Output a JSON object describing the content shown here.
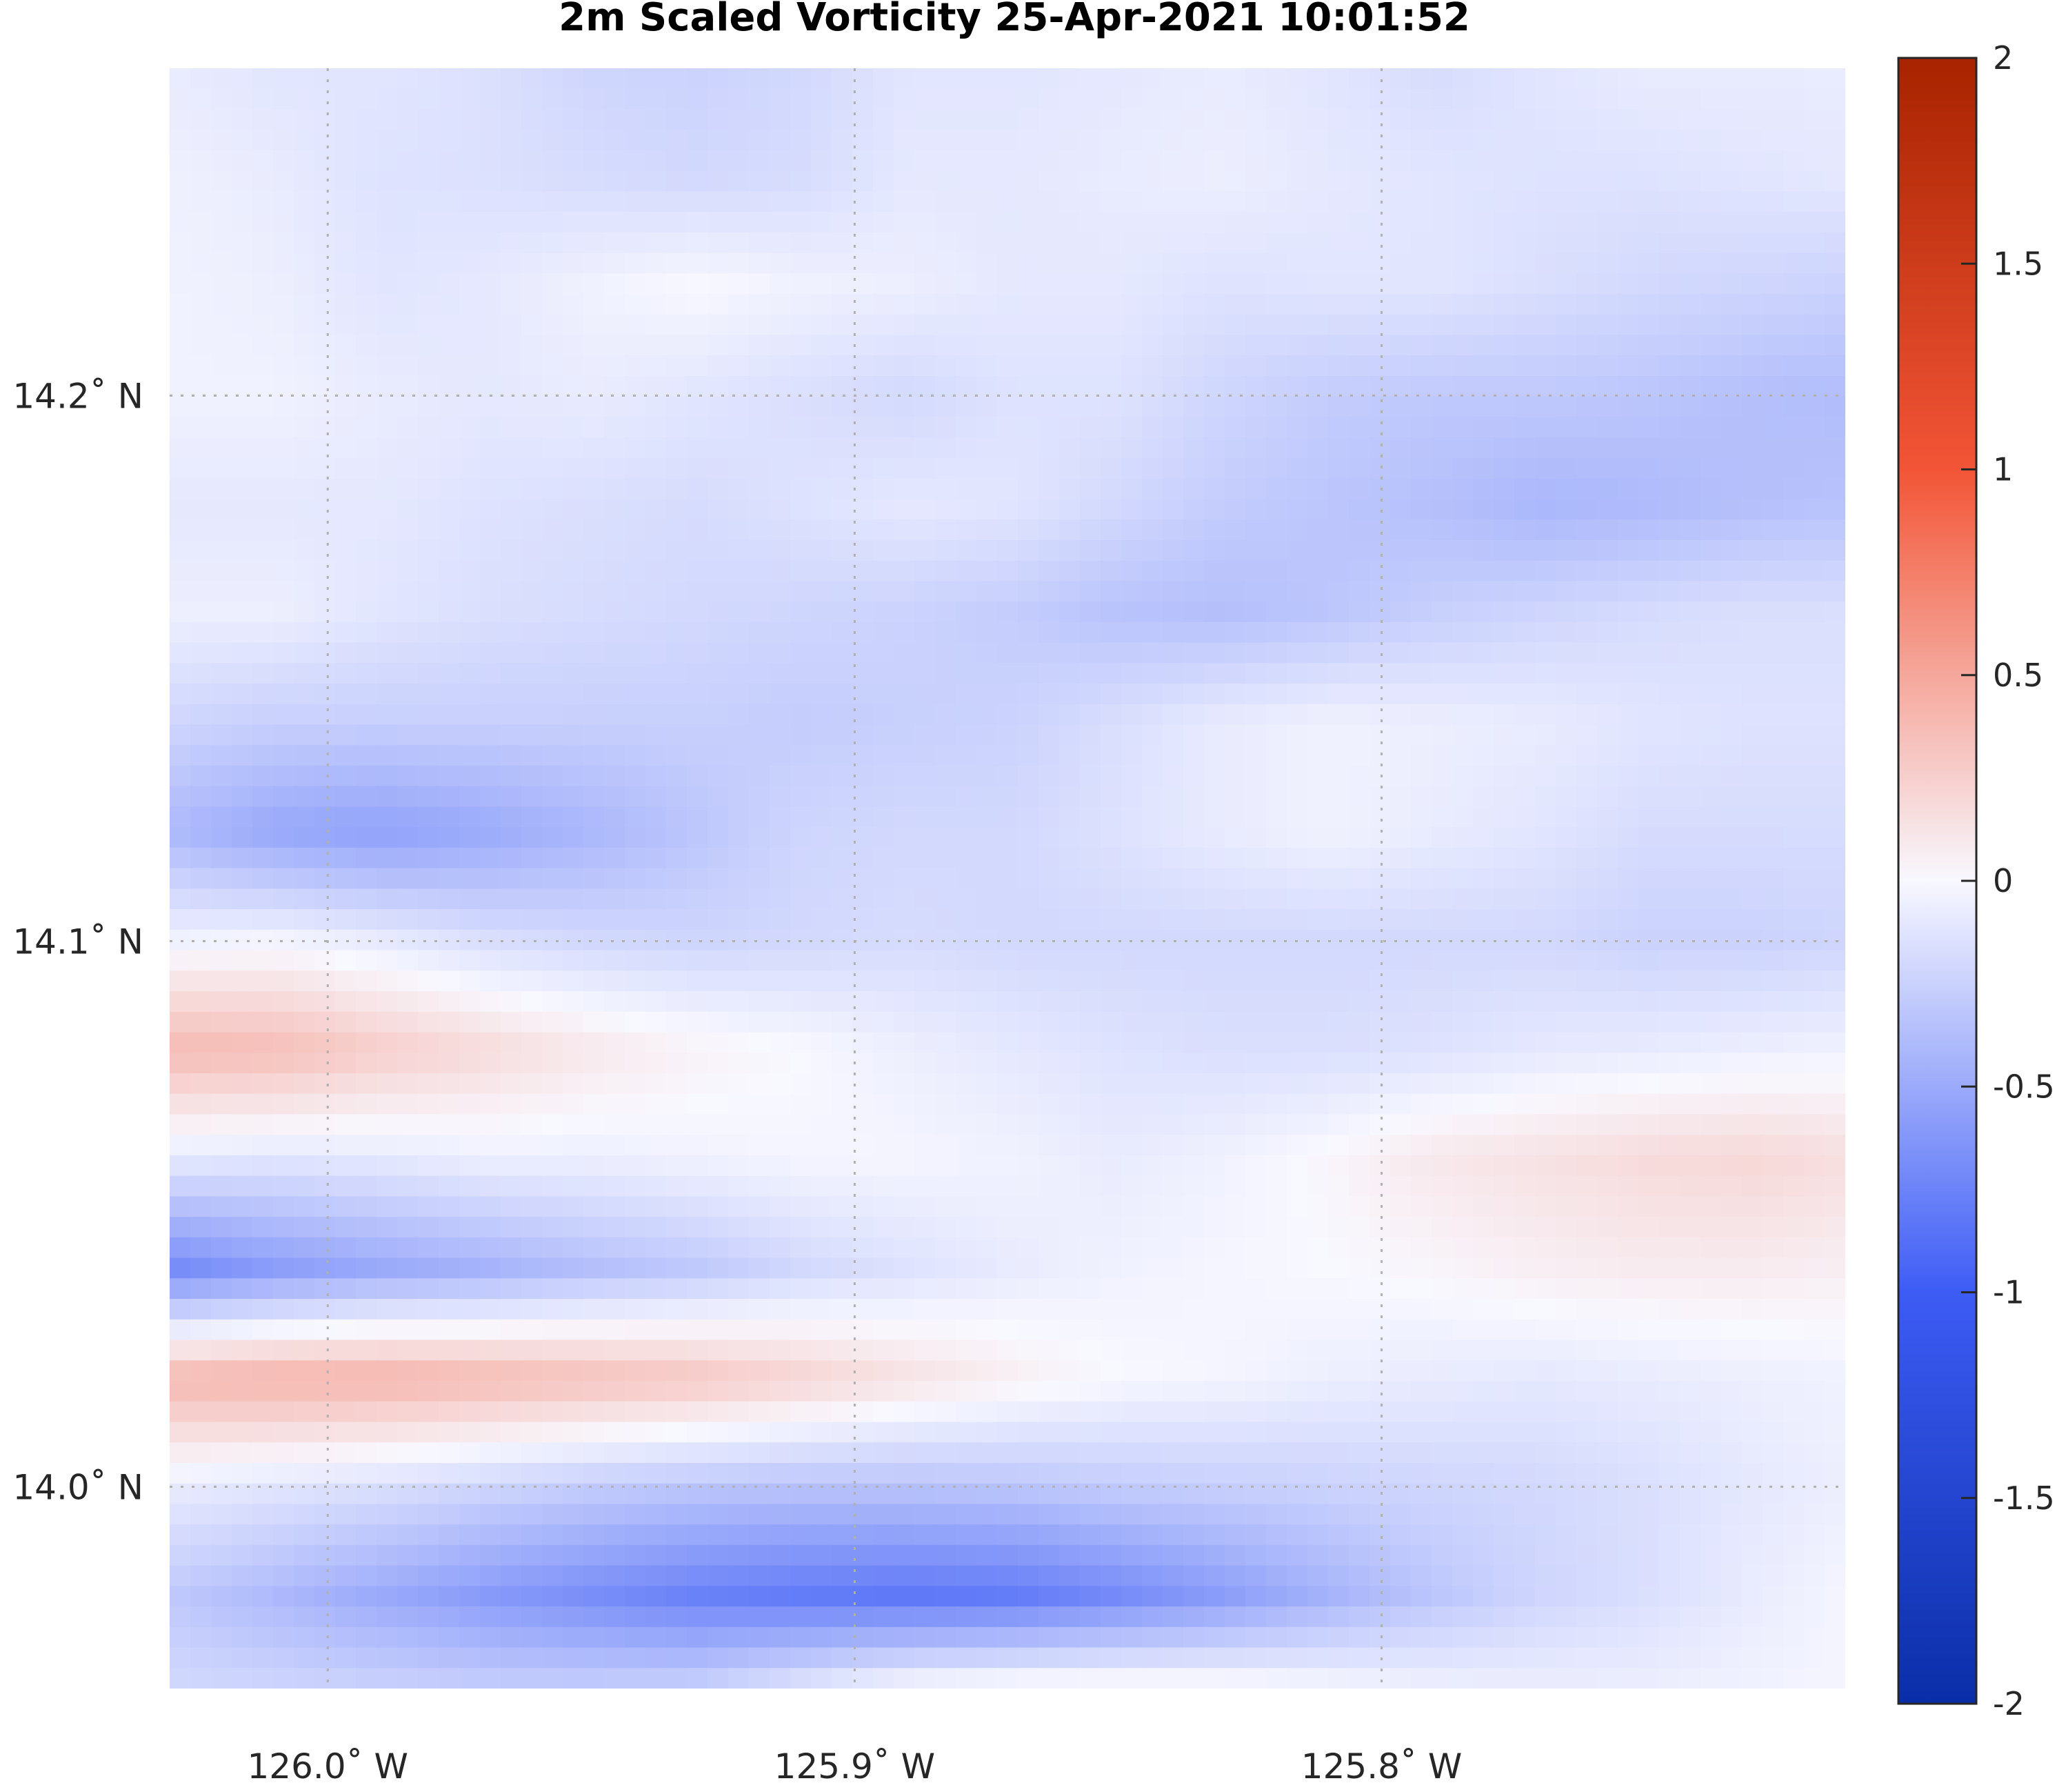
{
  "chart_data": {
    "type": "heatmap",
    "title": "2m Scaled Vorticity  25-Apr-2021 10:01:52",
    "xlabel": "",
    "ylabel": "",
    "x_ticks": [
      {
        "value": -126.0,
        "label": "126.0˚ W"
      },
      {
        "value": -125.9,
        "label": "125.9˚ W"
      },
      {
        "value": -125.8,
        "label": "125.8˚ W"
      }
    ],
    "y_ticks": [
      {
        "value": 14.2,
        "label": "14.2˚ N"
      },
      {
        "value": 14.1,
        "label": "14.1˚ N"
      },
      {
        "value": 14.0,
        "label": "14.0˚ N"
      }
    ],
    "xlim": [
      -126.03,
      -125.712
    ],
    "ylim": [
      13.963,
      14.26
    ],
    "grid": true,
    "colorbar": {
      "position": "right",
      "range": [
        -2,
        2
      ],
      "ticks": [
        {
          "value": 2,
          "label": "2"
        },
        {
          "value": 1.5,
          "label": "1.5"
        },
        {
          "value": 1,
          "label": "1"
        },
        {
          "value": 0.5,
          "label": "0.5"
        },
        {
          "value": 0,
          "label": "0"
        },
        {
          "value": -0.5,
          "label": "-0.5"
        },
        {
          "value": -1,
          "label": "-1"
        },
        {
          "value": -1.5,
          "label": "-1.5"
        },
        {
          "value": -2,
          "label": "-2"
        }
      ],
      "colors": {
        "low": "#0a2ea8",
        "mid_low": "#3d5cf5",
        "zero": "#f8f8ff",
        "mid_high": "#f25536",
        "high": "#a82300"
      }
    },
    "grid_x": [
      -126.03,
      -126.01,
      -125.99,
      -125.97,
      -125.95,
      -125.93,
      -125.91,
      -125.89,
      -125.87,
      -125.85,
      -125.83,
      -125.81,
      -125.79,
      -125.77,
      -125.75,
      -125.73,
      -125.712
    ],
    "grid_y": [
      14.26,
      14.24,
      14.22,
      14.2,
      14.18,
      14.16,
      14.14,
      14.12,
      14.1,
      14.08,
      14.06,
      14.04,
      14.02,
      14.0,
      13.98,
      13.963
    ],
    "values": [
      [
        -0.08,
        -0.12,
        -0.12,
        -0.15,
        -0.22,
        -0.24,
        -0.2,
        -0.12,
        -0.12,
        -0.1,
        -0.08,
        -0.12,
        -0.18,
        -0.12,
        -0.08,
        -0.08,
        -0.08
      ],
      [
        -0.05,
        -0.08,
        -0.14,
        -0.15,
        -0.18,
        -0.2,
        -0.18,
        -0.1,
        -0.1,
        -0.08,
        -0.06,
        -0.1,
        -0.12,
        -0.14,
        -0.14,
        -0.12,
        -0.1
      ],
      [
        -0.04,
        -0.06,
        -0.12,
        -0.1,
        -0.04,
        0.0,
        -0.04,
        -0.06,
        -0.1,
        -0.1,
        -0.14,
        -0.12,
        -0.12,
        -0.16,
        -0.2,
        -0.22,
        -0.24
      ],
      [
        -0.04,
        -0.04,
        -0.08,
        -0.1,
        -0.08,
        -0.12,
        -0.16,
        -0.2,
        -0.14,
        -0.14,
        -0.22,
        -0.28,
        -0.3,
        -0.3,
        -0.32,
        -0.36,
        -0.38
      ],
      [
        -0.1,
        -0.1,
        -0.1,
        -0.14,
        -0.16,
        -0.18,
        -0.14,
        -0.1,
        -0.12,
        -0.2,
        -0.28,
        -0.32,
        -0.36,
        -0.42,
        -0.4,
        -0.36,
        -0.34
      ],
      [
        -0.06,
        -0.06,
        -0.12,
        -0.16,
        -0.18,
        -0.2,
        -0.22,
        -0.24,
        -0.28,
        -0.34,
        -0.36,
        -0.32,
        -0.26,
        -0.22,
        -0.18,
        -0.16,
        -0.16
      ],
      [
        -0.22,
        -0.26,
        -0.26,
        -0.26,
        -0.26,
        -0.26,
        -0.28,
        -0.26,
        -0.24,
        -0.16,
        -0.08,
        -0.04,
        -0.06,
        -0.08,
        -0.12,
        -0.14,
        -0.14
      ],
      [
        -0.4,
        -0.52,
        -0.56,
        -0.5,
        -0.42,
        -0.32,
        -0.22,
        -0.2,
        -0.2,
        -0.14,
        -0.08,
        -0.04,
        -0.08,
        -0.12,
        -0.18,
        -0.18,
        -0.18
      ],
      [
        -0.04,
        -0.02,
        -0.08,
        -0.16,
        -0.2,
        -0.22,
        -0.2,
        -0.18,
        -0.2,
        -0.2,
        -0.2,
        -0.2,
        -0.2,
        -0.2,
        -0.24,
        -0.24,
        -0.22
      ],
      [
        0.38,
        0.36,
        0.26,
        0.18,
        0.1,
        0.04,
        0.0,
        -0.06,
        -0.1,
        -0.14,
        -0.16,
        -0.16,
        -0.14,
        -0.1,
        -0.08,
        -0.06,
        -0.04
      ],
      [
        -0.1,
        -0.12,
        -0.1,
        -0.06,
        -0.06,
        -0.04,
        -0.02,
        -0.02,
        -0.04,
        -0.08,
        -0.04,
        0.02,
        0.1,
        0.14,
        0.18,
        0.2,
        0.16
      ],
      [
        -0.7,
        -0.58,
        -0.5,
        -0.44,
        -0.36,
        -0.3,
        -0.2,
        -0.14,
        -0.08,
        -0.04,
        -0.02,
        0.0,
        0.02,
        0.06,
        0.08,
        0.08,
        0.06
      ],
      [
        0.4,
        0.42,
        0.42,
        0.38,
        0.34,
        0.3,
        0.22,
        0.14,
        0.06,
        0.0,
        -0.02,
        -0.06,
        -0.08,
        -0.1,
        -0.08,
        -0.06,
        -0.04
      ],
      [
        -0.08,
        -0.12,
        -0.16,
        -0.22,
        -0.28,
        -0.32,
        -0.34,
        -0.34,
        -0.32,
        -0.28,
        -0.26,
        -0.24,
        -0.22,
        -0.2,
        -0.16,
        -0.1,
        -0.06
      ],
      [
        -0.3,
        -0.4,
        -0.5,
        -0.6,
        -0.68,
        -0.76,
        -0.8,
        -0.82,
        -0.8,
        -0.7,
        -0.58,
        -0.44,
        -0.32,
        -0.22,
        -0.16,
        -0.08,
        -0.02
      ],
      [
        -0.2,
        -0.22,
        -0.24,
        -0.26,
        -0.26,
        -0.24,
        -0.1,
        0.02,
        0.06,
        0.06,
        0.04,
        0.0,
        -0.04,
        -0.06,
        -0.06,
        -0.04,
        -0.02
      ]
    ]
  }
}
